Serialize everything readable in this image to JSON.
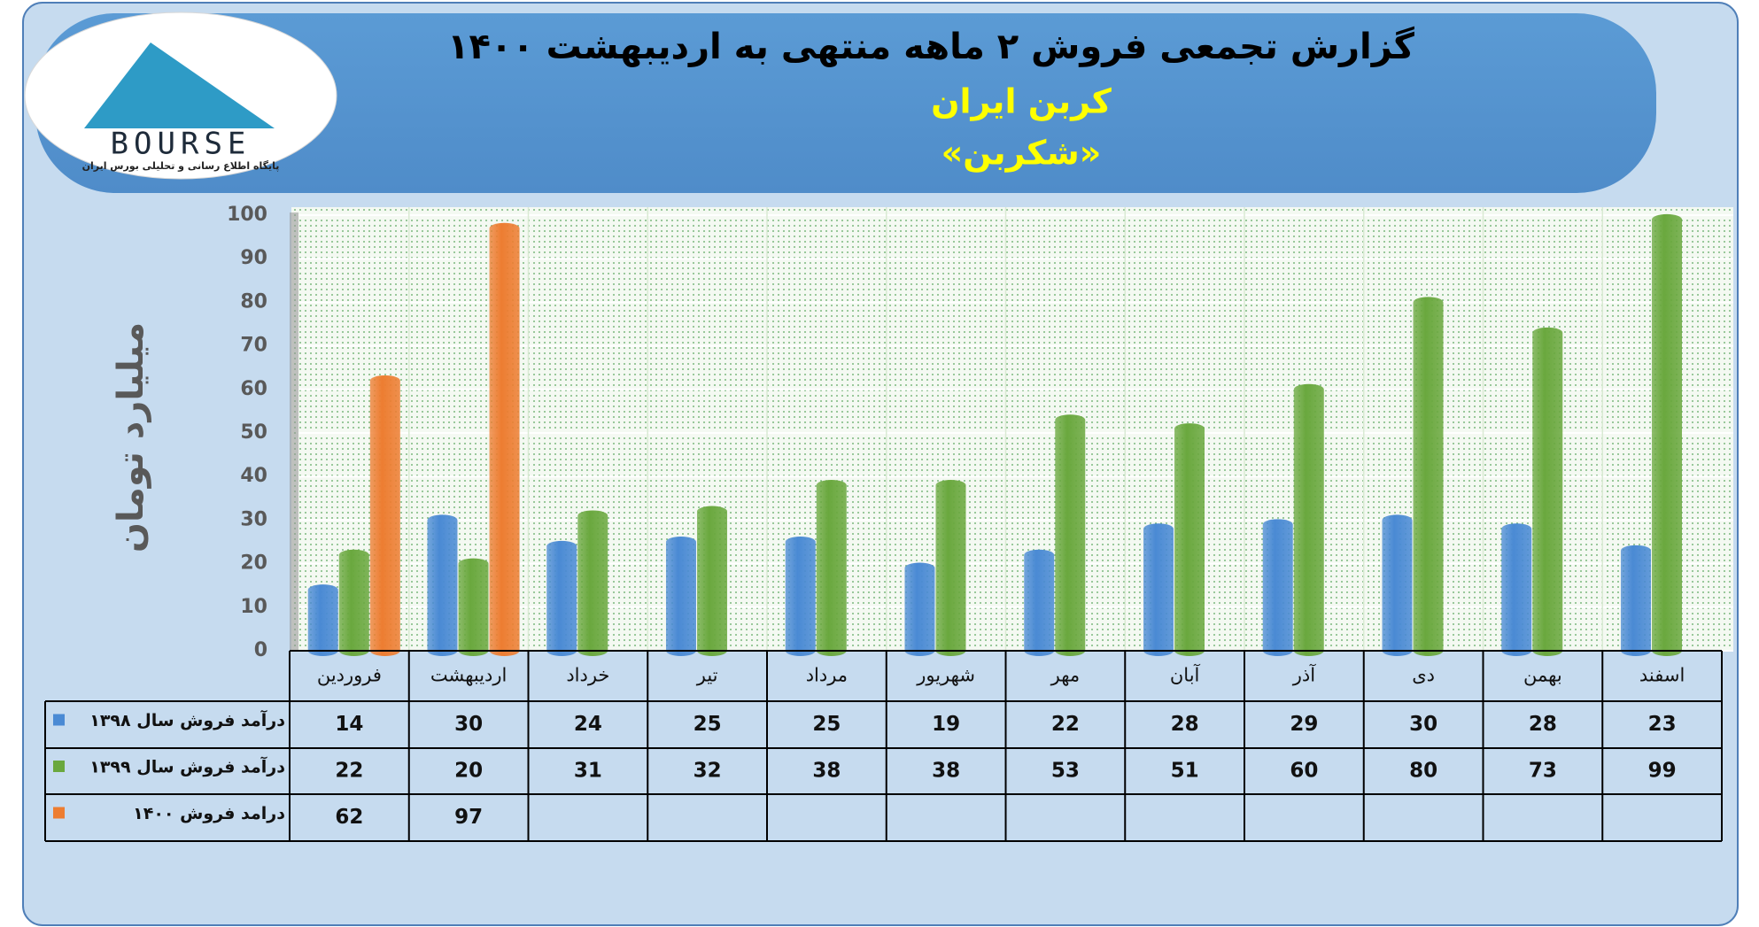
{
  "logo": {
    "text": "BOURSE",
    "tagline": "پایگاه اطلاع رسانی و تحلیلی بورس ایران"
  },
  "chart_data": {
    "type": "bar",
    "title": "گزارش تجمعی فروش ۲ ماهه منتهی به اردیبهشت ۱۴۰۰",
    "subtitle": "کربن ایران",
    "subtitle2": "«شکربن»",
    "y_label": "میلیارد تومان",
    "categories": [
      "فروردین",
      "اردیبهشت",
      "خرداد",
      "تیر",
      "مرداد",
      "شهریور",
      "مهر",
      "آبان",
      "آذر",
      "دی",
      "بهمن",
      "اسفند"
    ],
    "series": [
      {
        "name": "درآمد فروش سال ۱۳۹۸",
        "color": "#4a8ad4",
        "values": [
          14,
          30,
          24,
          25,
          25,
          19,
          22,
          28,
          29,
          30,
          28,
          23
        ]
      },
      {
        "name": "درآمد فروش سال ۱۳۹۹",
        "color": "#6aa83e",
        "values": [
          22,
          20,
          31,
          32,
          38,
          38,
          53,
          51,
          60,
          80,
          73,
          99
        ]
      },
      {
        "name": "درامد فروش ۱۴۰۰",
        "color": "#ed7d31",
        "values": [
          62,
          97,
          null,
          null,
          null,
          null,
          null,
          null,
          null,
          null,
          null,
          null
        ]
      }
    ],
    "ylim": [
      0,
      100
    ],
    "yticks": [
      0,
      10,
      20,
      30,
      40,
      50,
      60,
      70,
      80,
      90,
      100
    ],
    "grid": true
  }
}
